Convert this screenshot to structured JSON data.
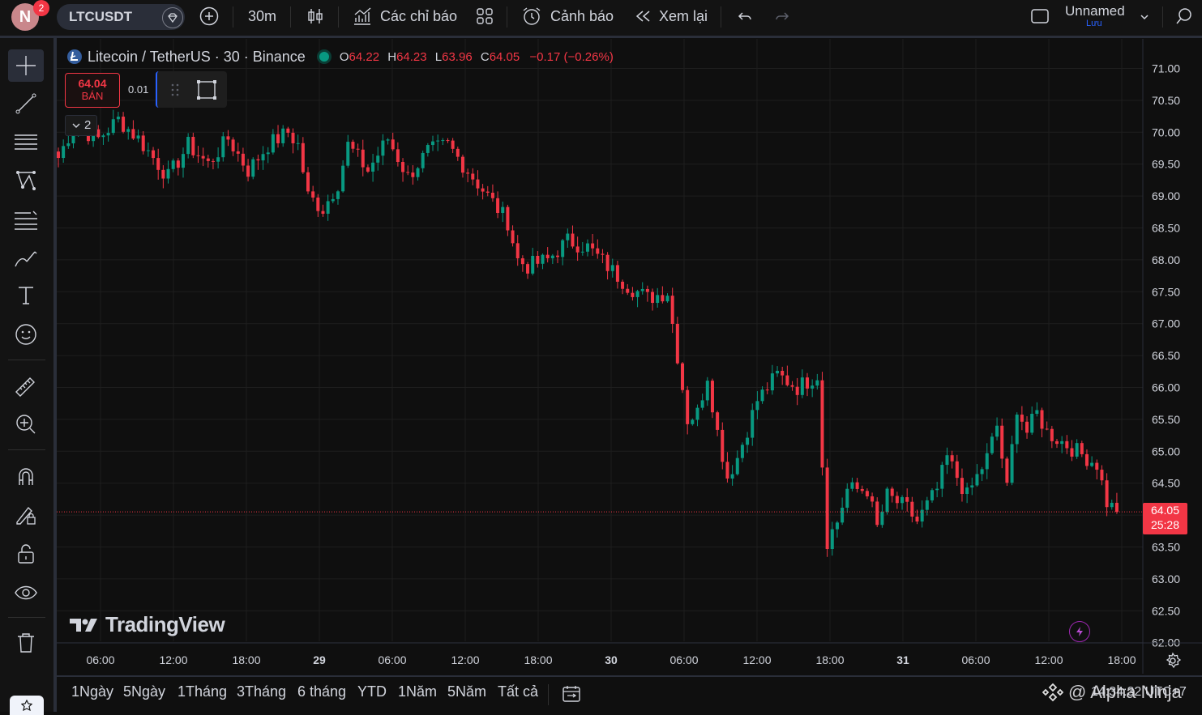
{
  "topbar": {
    "avatar_letter": "N",
    "notification_count": "2",
    "symbol": "LTCUSDT",
    "interval": "30m",
    "indicators_label": "Các chỉ báo",
    "alert_label": "Cảnh báo",
    "replay_label": "Xem lại",
    "layout_name": "Unnamed",
    "save_label": "Lưu"
  },
  "legend": {
    "title": "Litecoin / TetherUS · 30 · Binance",
    "o_label": "O",
    "o_value": "64.22",
    "h_label": "H",
    "h_value": "64.23",
    "l_label": "L",
    "l_value": "63.96",
    "c_label": "C",
    "c_value": "64.05",
    "change": "−0.17 (−0.26%)"
  },
  "trade": {
    "sell_price": "64.04",
    "sell_label": "BÁN",
    "spread": "0.01"
  },
  "indicator_count": "2",
  "watermark": "TradingView",
  "current_price": {
    "value": "64.05",
    "countdown": "25:28"
  },
  "bottombar": {
    "ranges": [
      "1Ngày",
      "5Ngày",
      "1Tháng",
      "3Tháng",
      "6 tháng",
      "YTD",
      "1Năm",
      "5Năm",
      "Tất cả"
    ],
    "clock": "14:34:32 UTC+7",
    "author": "@ Alpha Ninja"
  },
  "colors": {
    "up": "#089981",
    "down": "#f23645",
    "background": "#0f0f0f",
    "grid": "#1e1e1e"
  },
  "icons": [
    "crosshair-icon",
    "trend-line-icon",
    "fib-icon",
    "pattern-icon",
    "forecast-icon",
    "brush-icon",
    "text-icon",
    "emoji-icon",
    "ruler-icon",
    "zoom-in-icon",
    "magnet-icon",
    "lock-drawing-icon",
    "lock-icon",
    "eye-icon",
    "trash-icon",
    "settings-icon",
    "lightning-icon",
    "calendar-range-icon"
  ],
  "chart_data": {
    "type": "candlestick",
    "title": "Litecoin / TetherUS · 30 · Binance",
    "y_ticks": [
      "71.00",
      "70.50",
      "70.00",
      "69.50",
      "69.00",
      "68.50",
      "68.00",
      "67.50",
      "67.00",
      "66.50",
      "66.00",
      "65.50",
      "65.00",
      "64.50",
      "64.00",
      "63.50",
      "63.00",
      "62.50",
      "62.00"
    ],
    "x_ticks": [
      "06:00",
      "12:00",
      "18:00",
      "29",
      "06:00",
      "12:00",
      "18:00",
      "30",
      "06:00",
      "12:00",
      "18:00",
      "31",
      "06:00",
      "12:00",
      "18:00"
    ],
    "ylim": [
      62.0,
      71.0
    ],
    "grid": true,
    "current_price": 64.05,
    "series": [
      {
        "name": "LTCUSDT",
        "anchors": [
          [
            0,
            69.6
          ],
          [
            3,
            70.1
          ],
          [
            8,
            69.9
          ],
          [
            12,
            70.2
          ],
          [
            16,
            69.9
          ],
          [
            22,
            69.3
          ],
          [
            26,
            69.8
          ],
          [
            30,
            69.5
          ],
          [
            34,
            69.9
          ],
          [
            38,
            69.4
          ],
          [
            42,
            69.8
          ],
          [
            46,
            70.0
          ],
          [
            48,
            69.8
          ],
          [
            50,
            69.0
          ],
          [
            53,
            68.8
          ],
          [
            56,
            69.2
          ],
          [
            58,
            69.8
          ],
          [
            62,
            69.4
          ],
          [
            66,
            69.9
          ],
          [
            70,
            69.3
          ],
          [
            74,
            69.7
          ],
          [
            78,
            69.8
          ],
          [
            82,
            69.4
          ],
          [
            86,
            69.0
          ],
          [
            90,
            68.6
          ],
          [
            92,
            68.0
          ],
          [
            94,
            67.9
          ],
          [
            98,
            68.0
          ],
          [
            102,
            68.3
          ],
          [
            106,
            68.2
          ],
          [
            110,
            67.9
          ],
          [
            114,
            67.6
          ],
          [
            118,
            67.4
          ],
          [
            122,
            67.5
          ],
          [
            124,
            66.5
          ],
          [
            126,
            65.5
          ],
          [
            128,
            65.6
          ],
          [
            130,
            66.2
          ],
          [
            132,
            65.3
          ],
          [
            134,
            64.6
          ],
          [
            136,
            64.9
          ],
          [
            140,
            65.8
          ],
          [
            144,
            66.2
          ],
          [
            148,
            66.0
          ],
          [
            152,
            66.2
          ],
          [
            153,
            64.8
          ],
          [
            154,
            63.6
          ],
          [
            156,
            63.9
          ],
          [
            158,
            64.4
          ],
          [
            162,
            64.4
          ],
          [
            164,
            63.8
          ],
          [
            166,
            64.3
          ],
          [
            170,
            64.1
          ],
          [
            172,
            63.9
          ],
          [
            176,
            64.4
          ],
          [
            178,
            64.9
          ],
          [
            182,
            64.3
          ],
          [
            186,
            64.9
          ],
          [
            188,
            65.4
          ],
          [
            190,
            64.4
          ],
          [
            192,
            65.7
          ],
          [
            194,
            65.3
          ],
          [
            196,
            65.6
          ],
          [
            198,
            65.3
          ],
          [
            202,
            65.1
          ],
          [
            206,
            64.9
          ],
          [
            208,
            64.8
          ],
          [
            210,
            64.2
          ],
          [
            212,
            64.05
          ]
        ]
      }
    ]
  }
}
